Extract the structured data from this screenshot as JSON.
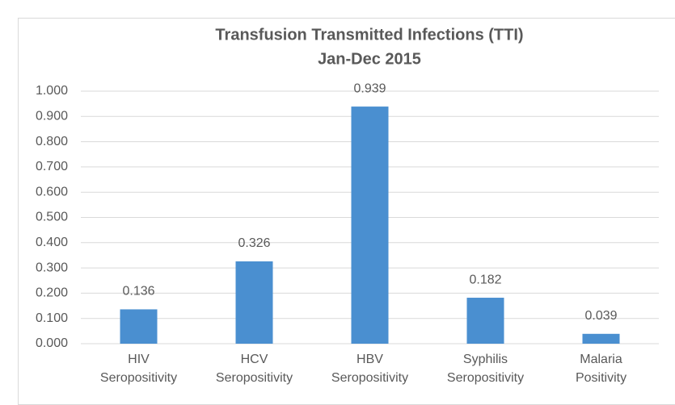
{
  "chart_data": {
    "type": "bar",
    "title": "Transfusion Transmitted Infections (TTI)",
    "subtitle": "Jan-Dec 2015",
    "categories": [
      "HIV\nSeropositivity",
      "HCV\nSeropositivity",
      "HBV\nSeropositivity",
      "Syphilis\nSeropositivity",
      "Malaria\nPositivity"
    ],
    "values": [
      0.136,
      0.326,
      0.939,
      0.182,
      0.039
    ],
    "color": "#4a8fd0",
    "ylim": [
      0,
      1
    ],
    "yticks": [
      {
        "value": 0,
        "label": "0.000"
      },
      {
        "value": 0.1,
        "label": "0.100"
      },
      {
        "value": 0.2,
        "label": "0.200"
      },
      {
        "value": 0.3,
        "label": "0.300"
      },
      {
        "value": 0.4,
        "label": "0.400"
      },
      {
        "value": 0.5,
        "label": "0.500"
      },
      {
        "value": 0.6,
        "label": "0.600"
      },
      {
        "value": 0.7,
        "label": "0.700"
      },
      {
        "value": 0.8,
        "label": "0.800"
      },
      {
        "value": 0.9,
        "label": "0.900"
      },
      {
        "value": 1,
        "label": "1.000"
      }
    ],
    "grid": true
  }
}
